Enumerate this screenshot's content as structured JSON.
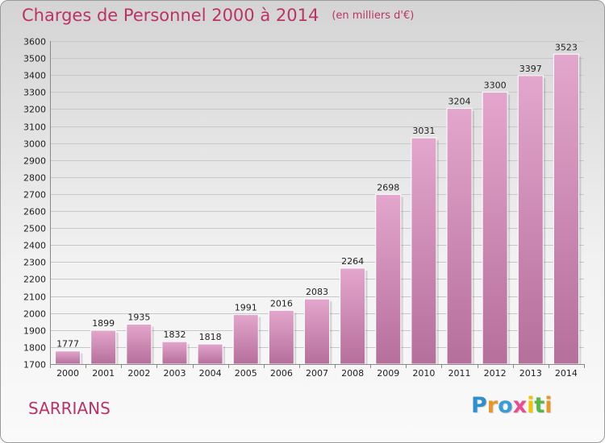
{
  "title": "Charges de Personnel 2000 à 2014",
  "unit": "(en milliers d'€)",
  "commune": "SARRIANS",
  "logo": {
    "text": "Proxiti",
    "letters": [
      "P",
      "r",
      "o",
      "x",
      "i",
      "t",
      "i"
    ],
    "colors": [
      "#2e8fd0",
      "#e8962a",
      "#3a9bd8",
      "#e94d8f",
      "#f2c500",
      "#56b84a",
      "#e8962a"
    ]
  },
  "colors": {
    "accent": "#bb3366",
    "bar_top": "#e3a6cc",
    "bar_bottom": "#b56f9b"
  },
  "chart_data": {
    "type": "bar",
    "title": "Charges de Personnel 2000 à 2014",
    "subtitle": "(en milliers d'€)",
    "xlabel": "",
    "ylabel": "",
    "categories": [
      "2000",
      "2001",
      "2002",
      "2003",
      "2004",
      "2005",
      "2006",
      "2007",
      "2008",
      "2009",
      "2010",
      "2011",
      "2012",
      "2013",
      "2014"
    ],
    "values": [
      1777,
      1899,
      1935,
      1832,
      1818,
      1991,
      2016,
      2083,
      2264,
      2698,
      3031,
      3204,
      3300,
      3397,
      3523
    ],
    "ylim": [
      1700,
      3600
    ],
    "yticks": [
      1700,
      1800,
      1900,
      2000,
      2100,
      2200,
      2300,
      2400,
      2500,
      2600,
      2700,
      2800,
      2900,
      3000,
      3100,
      3200,
      3300,
      3400,
      3500,
      3600
    ],
    "grid": true,
    "legend": "none"
  }
}
